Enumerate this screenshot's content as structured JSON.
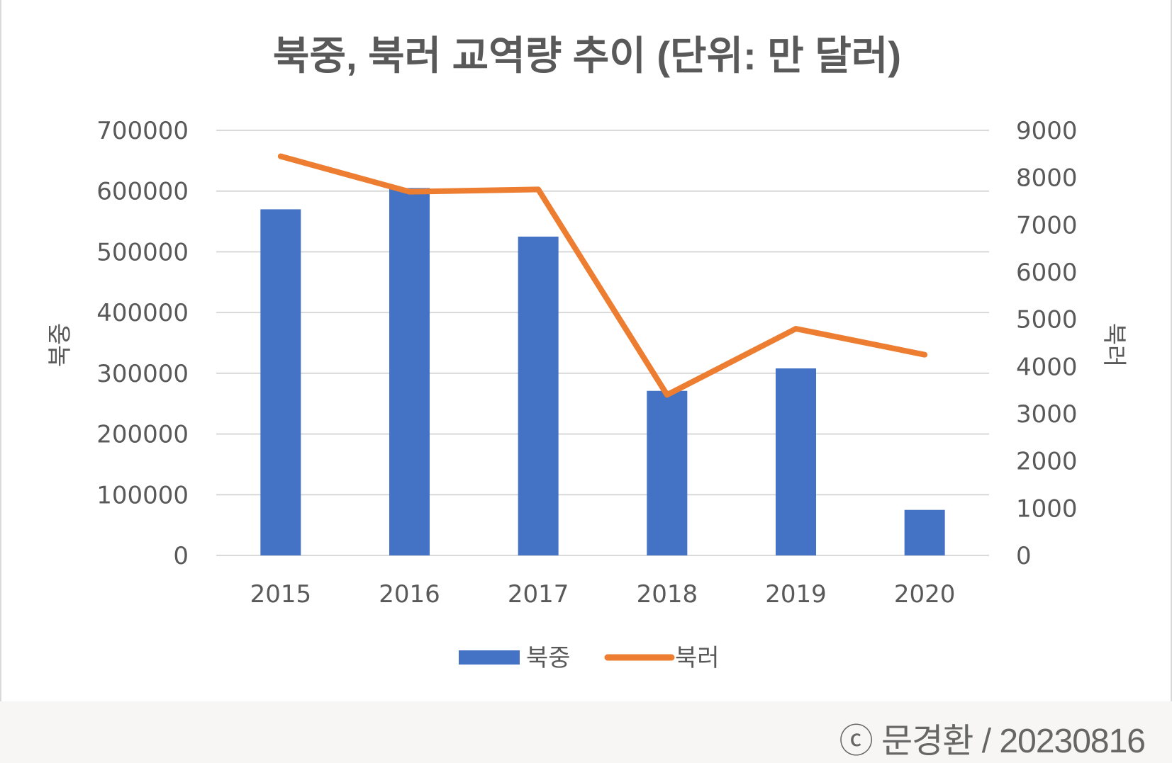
{
  "chart_data": {
    "type": "bar+line",
    "title": "북중, 북러 교역량 추이 (단위: 만 달러)",
    "categories": [
      "2015",
      "2016",
      "2017",
      "2018",
      "2019",
      "2020"
    ],
    "series": [
      {
        "name": "북중",
        "type": "bar",
        "axis": "left",
        "color": "#4472c4",
        "values": [
          570000,
          605000,
          525000,
          271000,
          308000,
          75000
        ]
      },
      {
        "name": "북러",
        "type": "line",
        "axis": "right",
        "color": "#ed7d31",
        "values": [
          8450,
          7700,
          7750,
          3400,
          4800,
          4250
        ]
      }
    ],
    "y_left": {
      "label": "북중",
      "range": [
        0,
        700000
      ],
      "ticks": [
        "0",
        "100000",
        "200000",
        "300000",
        "400000",
        "500000",
        "600000",
        "700000"
      ]
    },
    "y_right": {
      "label": "북러",
      "range": [
        0,
        9000
      ],
      "ticks": [
        "0",
        "1000",
        "2000",
        "3000",
        "4000",
        "5000",
        "6000",
        "7000",
        "8000",
        "9000"
      ]
    },
    "grid": true,
    "legend": "bottom"
  },
  "footer": {
    "credit": "ⓒ 문경환 / 20230816"
  }
}
